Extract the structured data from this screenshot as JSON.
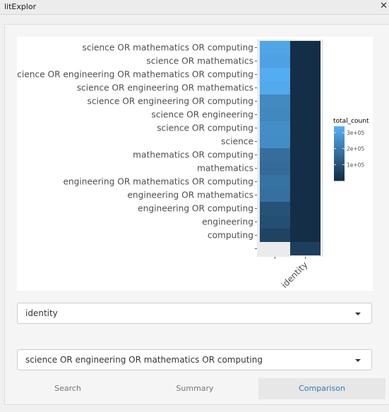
{
  "window": {
    "title": "litExplor"
  },
  "selects": {
    "primary": {
      "value": "identity"
    },
    "secondary": {
      "value": "science OR engineering OR mathematics OR computing"
    }
  },
  "tabs": [
    {
      "label": "Search",
      "active": false
    },
    {
      "label": "Summary",
      "active": false
    },
    {
      "label": "Comparison",
      "active": true
    }
  ],
  "chart_data": {
    "type": "heatmap",
    "x_categories": [
      "",
      "identity"
    ],
    "y_categories": [
      "science OR mathematics OR computing",
      "science OR mathematics",
      "science OR engineering OR mathematics OR computing",
      "science OR engineering OR mathematics",
      "science OR engineering OR computing",
      "science OR engineering",
      "science OR computing",
      "science",
      "mathematics OR computing",
      "mathematics",
      "engineering OR mathematics OR computing",
      "engineering OR mathematics",
      "engineering OR computing",
      "engineering",
      "computing",
      ""
    ],
    "values": [
      [
        310000,
        8000
      ],
      [
        300000,
        8000
      ],
      [
        330000,
        8000
      ],
      [
        320000,
        8000
      ],
      [
        240000,
        8000
      ],
      [
        235000,
        8000
      ],
      [
        250000,
        8000
      ],
      [
        245000,
        8000
      ],
      [
        170000,
        8000
      ],
      [
        160000,
        8000
      ],
      [
        180000,
        8000
      ],
      [
        175000,
        8000
      ],
      [
        100000,
        8000
      ],
      [
        90000,
        8000
      ],
      [
        60000,
        8000
      ],
      [
        null,
        50000
      ]
    ],
    "legend": {
      "title": "total_count",
      "breaks": [
        300000,
        200000,
        100000
      ],
      "break_labels": [
        "3e+05",
        "2e+05",
        "1e+05"
      ],
      "range": [
        0,
        340000
      ],
      "low_color": "#132b43",
      "high_color": "#56b1f7",
      "placement": "right"
    },
    "na_color": "#ebebeb"
  }
}
